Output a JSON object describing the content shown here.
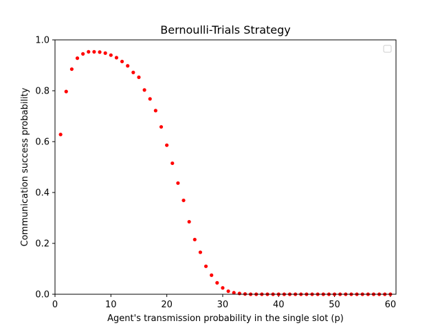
{
  "chart_data": {
    "type": "scatter",
    "title": "Bernoulli-Trials Strategy",
    "xlabel": "Agent's transmission probability in the single slot (p)",
    "ylabel": "Communication success probability",
    "xlim": [
      0,
      61
    ],
    "ylim": [
      0.0,
      1.0
    ],
    "xticks": [
      0,
      10,
      20,
      30,
      40,
      50,
      60
    ],
    "yticks": [
      0.0,
      0.2,
      0.4,
      0.6,
      0.8,
      1.0
    ],
    "xtick_labels": [
      "0",
      "10",
      "20",
      "30",
      "40",
      "50",
      "60"
    ],
    "ytick_labels": [
      "0.0",
      "0.2",
      "0.4",
      "0.6",
      "0.8",
      "1.0"
    ],
    "grid": false,
    "legend": {
      "position": "upper right",
      "entries": []
    },
    "marker_color": "#ff0000",
    "x": [
      1,
      2,
      3,
      4,
      5,
      6,
      7,
      8,
      9,
      10,
      11,
      12,
      13,
      14,
      15,
      16,
      17,
      18,
      19,
      20,
      21,
      22,
      23,
      24,
      25,
      26,
      27,
      28,
      29,
      30,
      31,
      32,
      33,
      34,
      35,
      36,
      37,
      38,
      39,
      40,
      41,
      42,
      43,
      44,
      45,
      46,
      47,
      48,
      49,
      50,
      51,
      52,
      53,
      54,
      55,
      56,
      57,
      58,
      59,
      60
    ],
    "y": [
      0.628,
      0.797,
      0.885,
      0.928,
      0.945,
      0.953,
      0.953,
      0.952,
      0.948,
      0.94,
      0.93,
      0.915,
      0.898,
      0.872,
      0.853,
      0.803,
      0.768,
      0.722,
      0.658,
      0.586,
      0.515,
      0.437,
      0.369,
      0.285,
      0.215,
      0.165,
      0.11,
      0.075,
      0.045,
      0.025,
      0.012,
      0.006,
      0.003,
      0.001,
      0.0,
      0.0,
      0.0,
      0.0,
      0.0,
      0.0,
      0.0,
      0.0,
      0.0,
      0.0,
      0.0,
      0.0,
      0.0,
      0.0,
      0.0,
      0.0,
      0.0,
      0.0,
      0.0,
      0.0,
      0.0,
      0.0,
      0.0,
      0.0,
      0.0,
      0.0
    ]
  }
}
